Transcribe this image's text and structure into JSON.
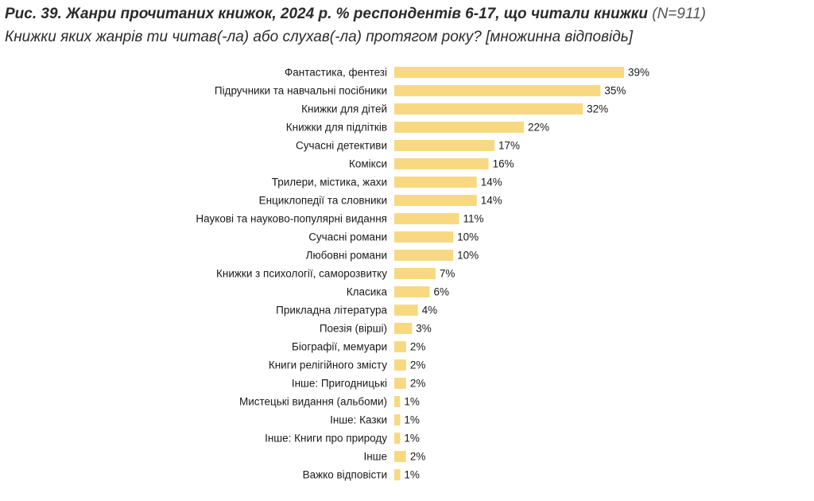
{
  "header": {
    "title_main": "Рис. 39. Жанри прочитаних книжок, 2024 р. % респондентів 6-17, що читали книжки",
    "title_sample": " (N=911)",
    "question": "Книжки яких жанрів ти читав(-ла) або слухав(-ла) протягом року? [множинна відповідь]"
  },
  "colors": {
    "bar": "#F8D981",
    "text": "#1a1a1a"
  },
  "chart_data": {
    "type": "bar",
    "orientation": "horizontal",
    "title": "Рис. 39. Жанри прочитаних книжок, 2024 р. % респондентів 6-17, що читали книжки (N=911)",
    "subtitle": "Книжки яких жанрів ти читав(-ла) або слухав(-ла) протягом року? [множинна відповідь]",
    "xlim": [
      0,
      39
    ],
    "categories": [
      "Фантастика, фентезі",
      "Підручники та навчальні посібники",
      "Книжки для дітей",
      "Книжки для підлітків",
      "Сучасні детективи",
      "Комікси",
      "Трилери, містика, жахи",
      "Енциклопедії та словники",
      "Наукові та науково-популярні видання",
      "Сучасні романи",
      "Любовні романи",
      "Книжки з психології, саморозвитку",
      "Класика",
      "Прикладна література",
      "Поезія (вірші)",
      "Біографії, мемуари",
      "Книги релігійного змісту",
      "Інше: Пригодницькі",
      "Мистецькі видання (альбоми)",
      "Інше: Казки",
      "Інше: Книги про природу",
      "Інше",
      "Важко відповісти"
    ],
    "values": [
      39,
      35,
      32,
      22,
      17,
      16,
      14,
      14,
      11,
      10,
      10,
      7,
      6,
      4,
      3,
      2,
      2,
      2,
      1,
      1,
      1,
      2,
      1
    ],
    "value_labels": [
      "39%",
      "35%",
      "32%",
      "22%",
      "17%",
      "16%",
      "14%",
      "14%",
      "11%",
      "10%",
      "10%",
      "7%",
      "6%",
      "4%",
      "3%",
      "2%",
      "2%",
      "2%",
      "1%",
      "1%",
      "1%",
      "2%",
      "1%"
    ]
  }
}
